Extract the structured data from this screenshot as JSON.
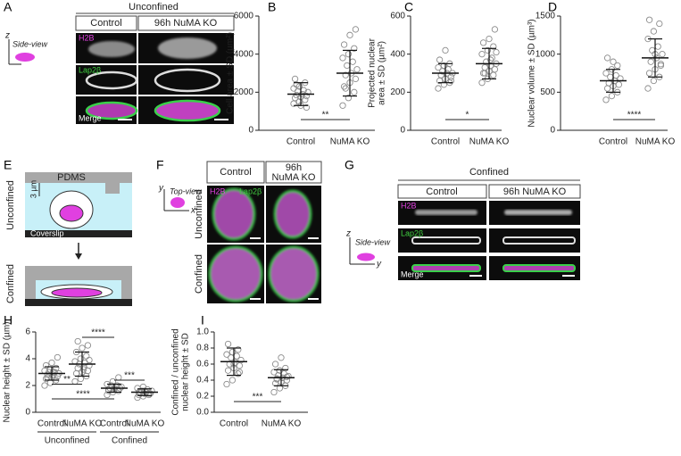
{
  "panel_a": {
    "label": "A",
    "title": "Unconfined",
    "columns": [
      "Control",
      "96h NuMA KO"
    ],
    "axis": "z",
    "view": "Side-view",
    "rows": [
      "H2B",
      "Lap2β",
      "Merge"
    ]
  },
  "panel_e": {
    "label": "E",
    "material": "PDMS",
    "height": "3 µm",
    "conditions": [
      "Unconfined",
      "Confined"
    ],
    "substrate": "Coverslip"
  },
  "panel_f": {
    "label": "F",
    "columns": [
      "Control",
      [
        "96h",
        "NuMA KO"
      ]
    ],
    "axes": [
      "y",
      "x"
    ],
    "view": "Top-view",
    "channels": [
      "H2B",
      "Lap2β"
    ],
    "rows": [
      "Unconfined",
      "Confined"
    ]
  },
  "panel_g": {
    "label": "G",
    "title": "Confined",
    "columns": [
      "Control",
      "96h NuMA KO"
    ],
    "axes": [
      "z",
      "y"
    ],
    "view": "Side-view",
    "rows": [
      "H2B",
      "Lap2β",
      "Merge"
    ]
  },
  "chart_data": [
    {
      "type": "strip",
      "panel_label": "B",
      "ylabel": [
        "Cell area ± SD (µm²)"
      ],
      "categories": [
        "Control",
        "NuMA KO"
      ],
      "points": [
        [
          1400,
          1500,
          1600,
          1700,
          1750,
          1800,
          1850,
          1900,
          2000,
          2050,
          2100,
          2200,
          2300,
          2500,
          2700,
          1300,
          1200,
          2400
        ],
        [
          1300,
          1700,
          2000,
          2300,
          2500,
          2700,
          2900,
          3000,
          3200,
          3400,
          3600,
          3800,
          4000,
          4300,
          4500,
          5000,
          5300,
          2200
        ]
      ],
      "mean": [
        1900,
        3000
      ],
      "sd": [
        600,
        1200
      ],
      "ylim": [
        0,
        6000
      ],
      "yticks": [
        0,
        2000,
        4000,
        6000
      ],
      "annotations": [
        "**"
      ]
    },
    {
      "type": "strip",
      "panel_label": "C",
      "ylabel": [
        "Projected nuclear",
        "area ± SD (µm²)"
      ],
      "categories": [
        "Control",
        "NuMA KO"
      ],
      "points": [
        [
          220,
          240,
          250,
          260,
          270,
          280,
          290,
          300,
          300,
          310,
          320,
          330,
          340,
          350,
          370,
          420,
          260,
          290
        ],
        [
          250,
          270,
          290,
          300,
          310,
          320,
          330,
          340,
          350,
          360,
          380,
          400,
          420,
          440,
          460,
          480,
          530,
          300,
          370,
          410
        ]
      ],
      "mean": [
        300,
        350
      ],
      "sd": [
        50,
        80
      ],
      "ylim": [
        0,
        600
      ],
      "yticks": [
        0,
        200,
        400,
        600
      ],
      "annotations": [
        "*"
      ]
    },
    {
      "type": "strip",
      "panel_label": "D",
      "ylabel": [
        "Nuclear volume ± SD (µm³)"
      ],
      "categories": [
        "Control",
        "NuMA KO"
      ],
      "points": [
        [
          400,
          450,
          500,
          550,
          580,
          600,
          620,
          650,
          680,
          700,
          720,
          750,
          800,
          850,
          950,
          900
        ],
        [
          550,
          650,
          700,
          750,
          800,
          850,
          900,
          950,
          1000,
          1050,
          1100,
          1200,
          1300,
          1400,
          1450,
          1000,
          870
        ]
      ],
      "mean": [
        650,
        950
      ],
      "sd": [
        150,
        250
      ],
      "ylim": [
        0,
        1500
      ],
      "yticks": [
        0,
        500,
        1000,
        1500
      ],
      "annotations": [
        "****"
      ]
    },
    {
      "type": "strip",
      "panel_label": "H",
      "ylabel": [
        "Nuclear height ± SD (µm)"
      ],
      "categories": [
        "Control",
        "NuMA KO",
        "Control",
        "NuMA KO"
      ],
      "groups": [
        "Unconfined",
        "Confined"
      ],
      "points": [
        [
          2.0,
          2.2,
          2.4,
          2.5,
          2.6,
          2.7,
          2.8,
          2.8,
          2.9,
          3.0,
          3.0,
          3.1,
          3.2,
          3.3,
          3.5,
          3.7,
          4.1,
          2.6,
          3.0
        ],
        [
          2.3,
          2.5,
          2.7,
          2.9,
          3.0,
          3.1,
          3.3,
          3.4,
          3.5,
          3.6,
          3.7,
          3.8,
          4.0,
          4.2,
          4.5,
          4.8,
          5.0,
          5.3,
          3.2,
          3.9
        ],
        [
          1.3,
          1.5,
          1.6,
          1.7,
          1.7,
          1.8,
          1.8,
          1.9,
          1.9,
          2.0,
          2.0,
          2.1,
          2.3,
          2.6,
          1.6,
          1.8
        ],
        [
          1.1,
          1.2,
          1.3,
          1.3,
          1.4,
          1.4,
          1.5,
          1.5,
          1.6,
          1.6,
          1.7,
          1.8,
          1.9,
          1.4,
          1.5,
          1.6
        ]
      ],
      "mean": [
        2.9,
        3.6,
        1.8,
        1.5
      ],
      "sd": [
        0.5,
        0.9,
        0.3,
        0.25
      ],
      "ylim": [
        0,
        6
      ],
      "yticks": [
        0,
        2,
        4,
        6
      ],
      "annotations": [
        "**",
        "****",
        "****",
        "***"
      ]
    },
    {
      "type": "strip",
      "panel_label": "I",
      "ylabel": [
        "Confined / unconfined",
        "nuclear  height ± SD"
      ],
      "categories": [
        "Control",
        "NuMA KO"
      ],
      "points": [
        [
          0.35,
          0.4,
          0.48,
          0.52,
          0.55,
          0.58,
          0.6,
          0.62,
          0.65,
          0.68,
          0.7,
          0.72,
          0.75,
          0.78,
          0.85,
          0.6,
          0.5
        ],
        [
          0.25,
          0.3,
          0.33,
          0.36,
          0.38,
          0.4,
          0.42,
          0.43,
          0.45,
          0.46,
          0.48,
          0.5,
          0.52,
          0.55,
          0.6,
          0.68,
          0.44,
          0.41
        ]
      ],
      "mean": [
        0.63,
        0.43
      ],
      "sd": [
        0.17,
        0.1
      ],
      "ylim": [
        0,
        1.0
      ],
      "yticks": [
        {
          "value": 0,
          "label": "0.0"
        },
        {
          "value": 0.2,
          "label": "0.2"
        },
        {
          "value": 0.4,
          "label": "0.4"
        },
        {
          "value": 0.6,
          "label": "0.6"
        },
        {
          "value": 0.8,
          "label": "0.8"
        },
        {
          "value": 1.0,
          "label": "1.0"
        }
      ],
      "annotations": [
        "***"
      ]
    }
  ]
}
